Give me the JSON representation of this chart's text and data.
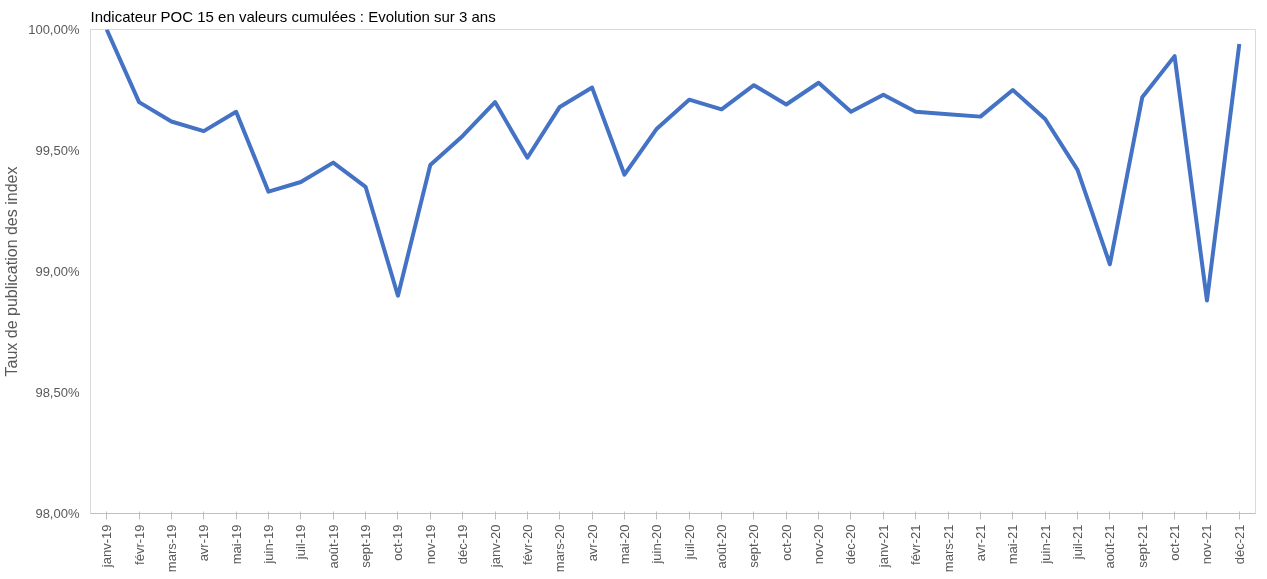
{
  "chart_data": {
    "type": "line",
    "title": "Indicateur POC 15 en valeurs cumulées : Evolution sur 3 ans",
    "ylabel": "Taux de publication des index",
    "categories": [
      "janv-19",
      "févr-19",
      "mars-19",
      "avr-19",
      "mai-19",
      "juin-19",
      "juil-19",
      "août-19",
      "sept-19",
      "oct-19",
      "nov-19",
      "déc-19",
      "janv-20",
      "févr-20",
      "mars-20",
      "avr-20",
      "mai-20",
      "juin-20",
      "juil-20",
      "août-20",
      "sept-20",
      "oct-20",
      "nov-20",
      "déc-20",
      "janv-21",
      "févr-21",
      "mars-21",
      "avr-21",
      "mai-21",
      "juin-21",
      "juil-21",
      "août-21",
      "sept-21",
      "oct-21",
      "nov-21",
      "déc-21"
    ],
    "series": [
      {
        "color": "#4472c4",
        "values": [
          100.0,
          99.7,
          99.62,
          99.58,
          99.66,
          99.33,
          99.37,
          99.45,
          99.35,
          98.9,
          99.44,
          99.56,
          99.7,
          99.47,
          99.68,
          99.76,
          99.4,
          99.59,
          99.71,
          99.67,
          99.77,
          99.69,
          99.78,
          99.66,
          99.73,
          99.66,
          99.65,
          99.64,
          99.75,
          99.63,
          99.42,
          99.03,
          99.72,
          99.89,
          98.88,
          99.94
        ]
      }
    ],
    "ylim": [
      98.0,
      100.0
    ],
    "yticks": [
      {
        "value": 98.0,
        "label": "98,00%"
      },
      {
        "value": 98.5,
        "label": "98,50%"
      },
      {
        "value": 99.0,
        "label": "99,00%"
      },
      {
        "value": 99.5,
        "label": "99,50%"
      },
      {
        "value": 100.0,
        "label": "100,00%"
      }
    ],
    "grid": false,
    "marker": "none",
    "line_style": "solid"
  }
}
